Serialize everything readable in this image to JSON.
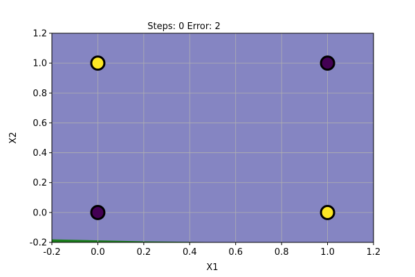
{
  "chart_data": {
    "type": "scatter",
    "title": "Steps: 0  Error: 2",
    "xlabel": "X1",
    "ylabel": "X2",
    "xlim": [
      -0.2,
      1.2
    ],
    "ylim": [
      -0.2,
      1.2
    ],
    "xticks": [
      "-0.2",
      "0.0",
      "0.2",
      "0.4",
      "0.6",
      "0.8",
      "1.0",
      "1.2"
    ],
    "yticks": [
      "-0.2",
      "0.0",
      "0.2",
      "0.4",
      "0.6",
      "0.8",
      "1.0",
      "1.2"
    ],
    "grid": true,
    "points": [
      {
        "x": 0,
        "y": 0,
        "class": 0
      },
      {
        "x": 0,
        "y": 1,
        "class": 1
      },
      {
        "x": 1,
        "y": 0,
        "class": 1
      },
      {
        "x": 1,
        "y": 1,
        "class": 0
      }
    ],
    "class_colors": {
      "0": "#440154",
      "1": "#fde725"
    },
    "point_edge_color": "#000000",
    "decision_regions": {
      "background_color": "#8585c2",
      "region_color": "#1b7f1b",
      "region_boundary": [
        {
          "x": -0.2,
          "y": -0.18
        },
        {
          "x": 0.2,
          "y": -0.193
        },
        {
          "x": 0.6,
          "y": -0.2
        }
      ]
    }
  }
}
